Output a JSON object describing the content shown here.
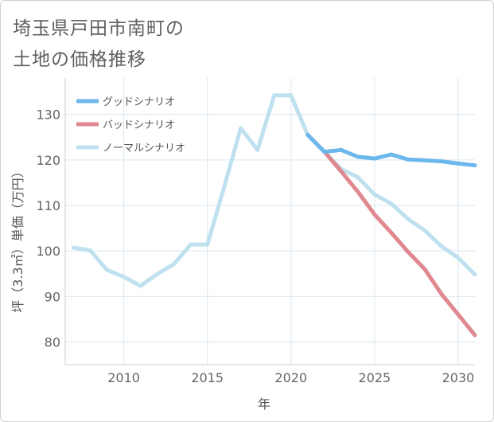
{
  "title_line1": "埼玉県戸田市南町の",
  "title_line2": "土地の価格推移",
  "chart_data": {
    "type": "line",
    "xlabel": "年",
    "ylabel": "坪（3.3㎡）単価（万円）",
    "xlim": [
      2006.5,
      2031
    ],
    "ylim": [
      75,
      138
    ],
    "xticks": [
      2010,
      2015,
      2020,
      2025,
      2030
    ],
    "yticks": [
      80,
      90,
      100,
      110,
      120,
      130
    ],
    "legend_position": "top-left",
    "series": [
      {
        "name": "グッドシナリオ",
        "color": "#6cb8ec",
        "x": [
          2021,
          2022,
          2023,
          2024,
          2025,
          2026,
          2027,
          2028,
          2029,
          2030,
          2031
        ],
        "y": [
          125.5,
          121.8,
          122.2,
          120.7,
          120.3,
          121.2,
          120.1,
          119.9,
          119.7,
          119.2,
          118.8
        ]
      },
      {
        "name": "バッドシナリオ",
        "color": "#e08890",
        "x": [
          2021,
          2022,
          2023,
          2024,
          2025,
          2026,
          2027,
          2028,
          2029,
          2030,
          2031
        ],
        "y": [
          125.5,
          121.8,
          117.5,
          113.0,
          108.0,
          104.0,
          99.8,
          96.0,
          90.5,
          86.0,
          81.5
        ]
      },
      {
        "name": "ノーマルシナリオ",
        "color": "#bfe0ee",
        "x": [
          2007,
          2008,
          2009,
          2010,
          2011,
          2012,
          2013,
          2014,
          2015,
          2016,
          2017,
          2018,
          2019,
          2020,
          2021,
          2022,
          2023,
          2024,
          2025,
          2026,
          2027,
          2028,
          2029,
          2030,
          2031
        ],
        "y": [
          100.7,
          100.1,
          95.8,
          94.3,
          92.3,
          94.9,
          97.1,
          101.4,
          101.4,
          114.0,
          127.0,
          122.2,
          134.2,
          134.2,
          125.5,
          121.8,
          118.0,
          116.2,
          112.4,
          110.4,
          107.0,
          104.5,
          101.0,
          98.5,
          94.8
        ]
      }
    ]
  }
}
